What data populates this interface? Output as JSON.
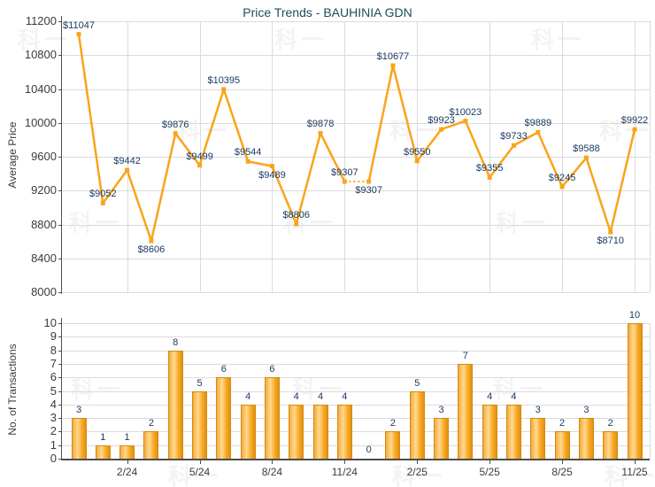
{
  "title": "Price Trends - BAUHINIA GDN",
  "watermark_text": "科一",
  "colors": {
    "line": "#FAA41A",
    "marker": "#FAA41A",
    "bar_border": "#D28A10",
    "bar_gradient": [
      "#F5AB3D",
      "#FFD98F",
      "#F7A823",
      "#E39112"
    ],
    "data_label": "#17375E",
    "title": "#1E4D5E",
    "axis_text": "#3B3B3B",
    "grid": "#DBDBDB",
    "axis_line": "#4D4D4D"
  },
  "chart_data": [
    {
      "type": "line",
      "title": "Price Trends - BAUHINIA GDN",
      "ylabel": "Average Price",
      "xlabel": "",
      "ylim": [
        8000,
        11200
      ],
      "yticks": [
        8000,
        8400,
        8800,
        9200,
        9600,
        10000,
        10400,
        10800,
        11200
      ],
      "grid": true,
      "legend_position": "none",
      "categories": [
        "12/23",
        "1/24",
        "2/24",
        "3/24",
        "4/24",
        "5/24",
        "6/24",
        "7/24",
        "8/24",
        "9/24",
        "10/24",
        "11/24",
        "12/24",
        "1/25",
        "2/25",
        "3/25",
        "4/25",
        "5/25",
        "6/25",
        "7/25",
        "8/25",
        "9/25",
        "10/25",
        "11/25"
      ],
      "values": [
        11047,
        9052,
        9442,
        8606,
        9876,
        9499,
        10395,
        9544,
        9489,
        8806,
        9878,
        9307,
        9307,
        10677,
        9550,
        9923,
        10023,
        9355,
        9733,
        9889,
        9245,
        9588,
        8710,
        9922
      ],
      "point_labels": [
        "$11047",
        "$9052",
        "$9442",
        "$8606",
        "$9876",
        "$9499",
        "$10395",
        "$9544",
        "$9489",
        "$8806",
        "$9878",
        "$9307",
        "$9307",
        "$10677",
        "$9550",
        "$9923",
        "$10023",
        "$9355",
        "$9733",
        "$9889",
        "$9245",
        "$9588",
        "$8710",
        "$9922"
      ],
      "x_tick_labels": [
        "2/24",
        "5/24",
        "8/24",
        "11/24",
        "2/25",
        "5/25",
        "8/25",
        "11/25"
      ],
      "x_tick_indices": [
        2,
        5,
        8,
        11,
        14,
        17,
        20,
        23
      ],
      "dotted_segment_indices": [
        11,
        12
      ]
    },
    {
      "type": "bar",
      "title": "",
      "ylabel": "No. of Transactions",
      "xlabel": "",
      "ylim": [
        0,
        10
      ],
      "yticks": [
        0,
        1,
        2,
        3,
        4,
        5,
        6,
        7,
        8,
        9,
        10
      ],
      "grid": true,
      "legend_position": "none",
      "categories": [
        "12/23",
        "1/24",
        "2/24",
        "3/24",
        "4/24",
        "5/24",
        "6/24",
        "7/24",
        "8/24",
        "9/24",
        "10/24",
        "11/24",
        "12/24",
        "1/25",
        "2/25",
        "3/25",
        "4/25",
        "5/25",
        "6/25",
        "7/25",
        "8/25",
        "9/25",
        "10/25",
        "11/25"
      ],
      "values": [
        3,
        1,
        1,
        2,
        8,
        5,
        6,
        4,
        6,
        4,
        4,
        4,
        0,
        2,
        5,
        3,
        7,
        4,
        4,
        3,
        2,
        3,
        2,
        10
      ],
      "x_tick_labels": [
        "2/24",
        "5/24",
        "8/24",
        "11/24",
        "2/25",
        "5/25",
        "8/25",
        "11/25"
      ],
      "x_tick_indices": [
        2,
        5,
        8,
        11,
        14,
        17,
        20,
        23
      ]
    }
  ]
}
